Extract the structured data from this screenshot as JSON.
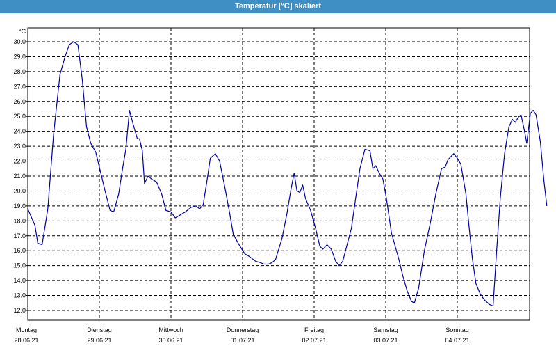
{
  "window": {
    "title": "Temperatur [°C] skaliert"
  },
  "colors": {
    "titlebar": "#3f8fc4",
    "line": "#0000a0",
    "grid": "#000000"
  },
  "chart_data": {
    "type": "line",
    "title": "Temperatur [°C] skaliert",
    "ylabel": "°C",
    "ylim": [
      12.0,
      30.0
    ],
    "ytick_labels": [
      "12.0",
      "13.0",
      "14.0",
      "15.0",
      "16.0",
      "17.0",
      "18.0",
      "19.0",
      "20.0",
      "21.0",
      "22.0",
      "23.0",
      "24.0",
      "25.0",
      "26.0",
      "27.0",
      "28.0",
      "29.0",
      "30.0"
    ],
    "day_labels": [
      {
        "day": "Montag",
        "date": "28.06.21"
      },
      {
        "day": "Dienstag",
        "date": "29.06.21"
      },
      {
        "day": "Mittwoch",
        "date": "30.06.21"
      },
      {
        "day": "Donnerstag",
        "date": "01.07.21"
      },
      {
        "day": "Freitag",
        "date": "02.07.21"
      },
      {
        "day": "Samstag",
        "date": "03.07.21"
      },
      {
        "day": "Sonntag",
        "date": "04.07.21"
      }
    ],
    "grid": true,
    "x_unit": "days since Montag 28.06.21 00:00",
    "series": [
      {
        "name": "Temperatur",
        "points": [
          [
            0.0,
            18.8
          ],
          [
            0.1,
            17.7
          ],
          [
            0.14,
            16.5
          ],
          [
            0.2,
            16.4
          ],
          [
            0.28,
            18.8
          ],
          [
            0.36,
            23.8
          ],
          [
            0.45,
            27.8
          ],
          [
            0.52,
            29.0
          ],
          [
            0.58,
            29.8
          ],
          [
            0.64,
            30.0
          ],
          [
            0.7,
            29.8
          ],
          [
            0.76,
            27.5
          ],
          [
            0.82,
            24.3
          ],
          [
            0.88,
            23.2
          ],
          [
            0.95,
            22.6
          ],
          [
            1.0,
            21.6
          ],
          [
            1.08,
            20.0
          ],
          [
            1.15,
            18.7
          ],
          [
            1.2,
            18.6
          ],
          [
            1.27,
            19.8
          ],
          [
            1.32,
            21.4
          ],
          [
            1.37,
            22.8
          ],
          [
            1.42,
            25.4
          ],
          [
            1.47,
            24.5
          ],
          [
            1.53,
            23.5
          ],
          [
            1.56,
            23.5
          ],
          [
            1.6,
            22.7
          ],
          [
            1.63,
            20.5
          ],
          [
            1.68,
            21.0
          ],
          [
            1.73,
            20.8
          ],
          [
            1.8,
            20.6
          ],
          [
            1.87,
            19.8
          ],
          [
            1.93,
            18.7
          ],
          [
            2.0,
            18.6
          ],
          [
            2.06,
            18.2
          ],
          [
            2.13,
            18.4
          ],
          [
            2.2,
            18.6
          ],
          [
            2.28,
            18.9
          ],
          [
            2.35,
            19.0
          ],
          [
            2.4,
            18.8
          ],
          [
            2.45,
            19.1
          ],
          [
            2.5,
            20.6
          ],
          [
            2.55,
            22.2
          ],
          [
            2.62,
            22.5
          ],
          [
            2.68,
            22.0
          ],
          [
            2.75,
            20.3
          ],
          [
            2.82,
            18.5
          ],
          [
            2.87,
            17.1
          ],
          [
            2.95,
            16.4
          ],
          [
            3.03,
            15.8
          ],
          [
            3.1,
            15.6
          ],
          [
            3.18,
            15.3
          ],
          [
            3.25,
            15.2
          ],
          [
            3.3,
            15.1
          ],
          [
            3.36,
            15.1
          ],
          [
            3.41,
            15.2
          ],
          [
            3.46,
            15.4
          ],
          [
            3.55,
            16.8
          ],
          [
            3.62,
            18.5
          ],
          [
            3.68,
            20.2
          ],
          [
            3.72,
            21.2
          ],
          [
            3.76,
            20.0
          ],
          [
            3.8,
            19.9
          ],
          [
            3.84,
            20.4
          ],
          [
            3.88,
            19.5
          ],
          [
            3.95,
            18.7
          ],
          [
            4.02,
            17.5
          ],
          [
            4.08,
            16.3
          ],
          [
            4.12,
            16.1
          ],
          [
            4.18,
            16.4
          ],
          [
            4.24,
            16.1
          ],
          [
            4.3,
            15.3
          ],
          [
            4.35,
            15.0
          ],
          [
            4.4,
            15.3
          ],
          [
            4.46,
            16.4
          ],
          [
            4.52,
            17.5
          ],
          [
            4.58,
            19.5
          ],
          [
            4.64,
            21.5
          ],
          [
            4.71,
            22.8
          ],
          [
            4.78,
            22.7
          ],
          [
            4.82,
            21.5
          ],
          [
            4.86,
            21.7
          ],
          [
            4.91,
            21.2
          ],
          [
            4.96,
            20.8
          ],
          [
            5.01,
            19.5
          ],
          [
            5.08,
            17.2
          ],
          [
            5.12,
            16.5
          ],
          [
            5.18,
            15.5
          ],
          [
            5.24,
            14.3
          ],
          [
            5.3,
            13.3
          ],
          [
            5.36,
            12.6
          ],
          [
            5.4,
            12.5
          ],
          [
            5.46,
            13.5
          ],
          [
            5.54,
            16.0
          ],
          [
            5.62,
            17.8
          ],
          [
            5.7,
            19.8
          ],
          [
            5.78,
            21.5
          ],
          [
            5.83,
            21.6
          ],
          [
            5.87,
            22.1
          ],
          [
            5.91,
            22.3
          ],
          [
            5.95,
            22.5
          ],
          [
            6.0,
            22.2
          ],
          [
            6.05,
            21.8
          ],
          [
            6.12,
            19.8
          ],
          [
            6.16,
            17.8
          ],
          [
            6.21,
            15.5
          ],
          [
            6.26,
            13.8
          ],
          [
            6.32,
            13.1
          ],
          [
            6.38,
            12.7
          ],
          [
            6.45,
            12.4
          ],
          [
            6.5,
            12.3
          ],
          [
            6.55,
            16.0
          ],
          [
            6.6,
            19.5
          ],
          [
            6.66,
            22.5
          ],
          [
            6.72,
            24.3
          ],
          [
            6.77,
            24.8
          ],
          [
            6.81,
            24.6
          ],
          [
            6.86,
            25.0
          ],
          [
            6.89,
            25.1
          ],
          [
            6.94,
            24.0
          ],
          [
            6.97,
            23.2
          ],
          [
            7.02,
            25.2
          ],
          [
            7.06,
            25.4
          ],
          [
            7.1,
            25.1
          ],
          [
            7.16,
            23.3
          ],
          [
            7.21,
            20.7
          ],
          [
            7.25,
            19.0
          ]
        ]
      }
    ]
  }
}
